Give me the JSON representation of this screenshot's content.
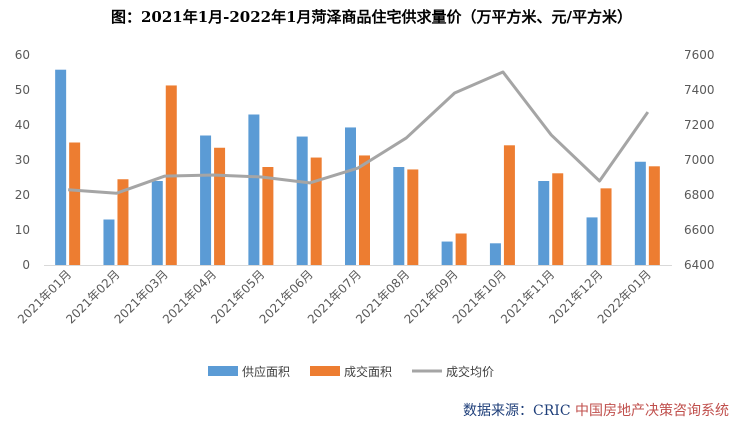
{
  "chart_data": {
    "type": "bar",
    "title": "图：2021年1月-2022年1月菏泽商品住宅供求量价（万平方米、元/平方米）",
    "categories": [
      "2021年01月",
      "2021年02月",
      "2021年03月",
      "2021年04月",
      "2021年05月",
      "2021年06月",
      "2021年07月",
      "2021年08月",
      "2021年09月",
      "2021年10月",
      "2021年11月",
      "2021年12月",
      "2022年01月"
    ],
    "series": [
      {
        "name": "供应面积",
        "type": "bar",
        "axis": "left",
        "color": "#5b9bd5",
        "values": [
          55.8,
          13.0,
          24.0,
          37.0,
          43.0,
          36.7,
          39.3,
          28.0,
          6.7,
          6.2,
          24.0,
          13.6,
          29.5
        ]
      },
      {
        "name": "成交面积",
        "type": "bar",
        "axis": "left",
        "color": "#ed7d31",
        "values": [
          35.0,
          24.5,
          51.3,
          33.5,
          28.0,
          30.7,
          31.3,
          27.3,
          9.0,
          34.2,
          26.2,
          21.9,
          28.2
        ]
      },
      {
        "name": "成交均价",
        "type": "line",
        "axis": "right",
        "color": "#a5a5a5",
        "values": [
          6830,
          6810,
          6908,
          6914,
          6903,
          6869,
          6954,
          7126,
          7383,
          7503,
          7143,
          6880,
          7274
        ]
      }
    ],
    "ylim": [
      0,
      60
    ],
    "yticks": [
      "0",
      "10",
      "20",
      "30",
      "40",
      "50",
      "60"
    ],
    "y2lim": [
      6400,
      7600
    ],
    "y2ticks": [
      "6400",
      "6600",
      "6800",
      "7000",
      "7200",
      "7400",
      "7600"
    ],
    "grid": false,
    "legend": "bottom"
  },
  "source": {
    "prefix": "数据来源：CRIC ",
    "brand": "中国房地产决策咨询系统"
  }
}
